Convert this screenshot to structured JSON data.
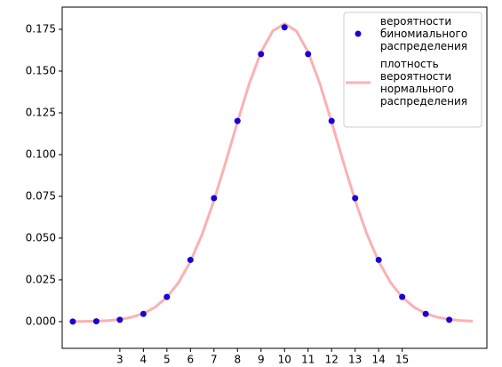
{
  "chart_data": {
    "type": "scatter+line",
    "xlim": [
      0.55,
      18.6
    ],
    "ylim": [
      -0.016,
      0.1883
    ],
    "xticks": [
      3,
      4,
      5,
      6,
      7,
      8,
      9,
      10,
      11,
      12,
      13,
      14,
      15
    ],
    "yticks": [
      {
        "value": 0,
        "label": "0.000"
      },
      {
        "value": 0.025,
        "label": "0.025"
      },
      {
        "value": 0.05,
        "label": "0.050"
      },
      {
        "value": 0.075,
        "label": "0.075"
      },
      {
        "value": 0.1,
        "label": "0.100"
      },
      {
        "value": 0.125,
        "label": "0.125"
      },
      {
        "value": 0.15,
        "label": "0.150"
      },
      {
        "value": 0.175,
        "label": "0.175"
      }
    ],
    "legend": "upper right",
    "series": [
      {
        "name": "вероятности\nбиномиального\nраспределения",
        "kind": "scatter",
        "color": "#1a00d6",
        "x": [
          1,
          2,
          3,
          4,
          5,
          6,
          7,
          8,
          9,
          10,
          11,
          12,
          13,
          14,
          15,
          16,
          17
        ],
        "values": [
          1.91e-05,
          0.000181,
          0.001087,
          0.004621,
          0.014786,
          0.036964,
          0.073929,
          0.120134,
          0.160179,
          0.176197,
          0.160179,
          0.120134,
          0.073929,
          0.036964,
          0.014786,
          0.004621,
          0.001087
        ]
      },
      {
        "name": "плотность\nвероятности\nнормального\nраспределения",
        "kind": "line",
        "color": "#fbb1b1",
        "x": [
          1,
          1.5,
          2,
          2.5,
          3,
          3.5,
          4,
          4.5,
          5,
          5.5,
          6,
          6.5,
          7,
          7.5,
          8,
          8.5,
          9,
          9.5,
          10,
          10.5,
          11,
          11.5,
          12,
          12.5,
          13,
          13.5,
          14,
          14.5,
          15,
          15.5,
          16,
          16.5,
          17,
          17.5,
          18
        ],
        "values": [
          5.41e-05,
          0.00013,
          0.000297,
          0.000643,
          0.001329,
          0.002609,
          0.004875,
          0.008663,
          0.014645,
          0.023548,
          0.036021,
          0.052411,
          0.072536,
          0.095495,
          0.119593,
          0.142464,
          0.161432,
          0.174005,
          0.17841,
          0.174005,
          0.161432,
          0.142464,
          0.119593,
          0.095495,
          0.072536,
          0.052411,
          0.036021,
          0.023548,
          0.014645,
          0.008663,
          0.004875,
          0.002609,
          0.001329,
          0.000643,
          0.000297
        ]
      }
    ]
  }
}
